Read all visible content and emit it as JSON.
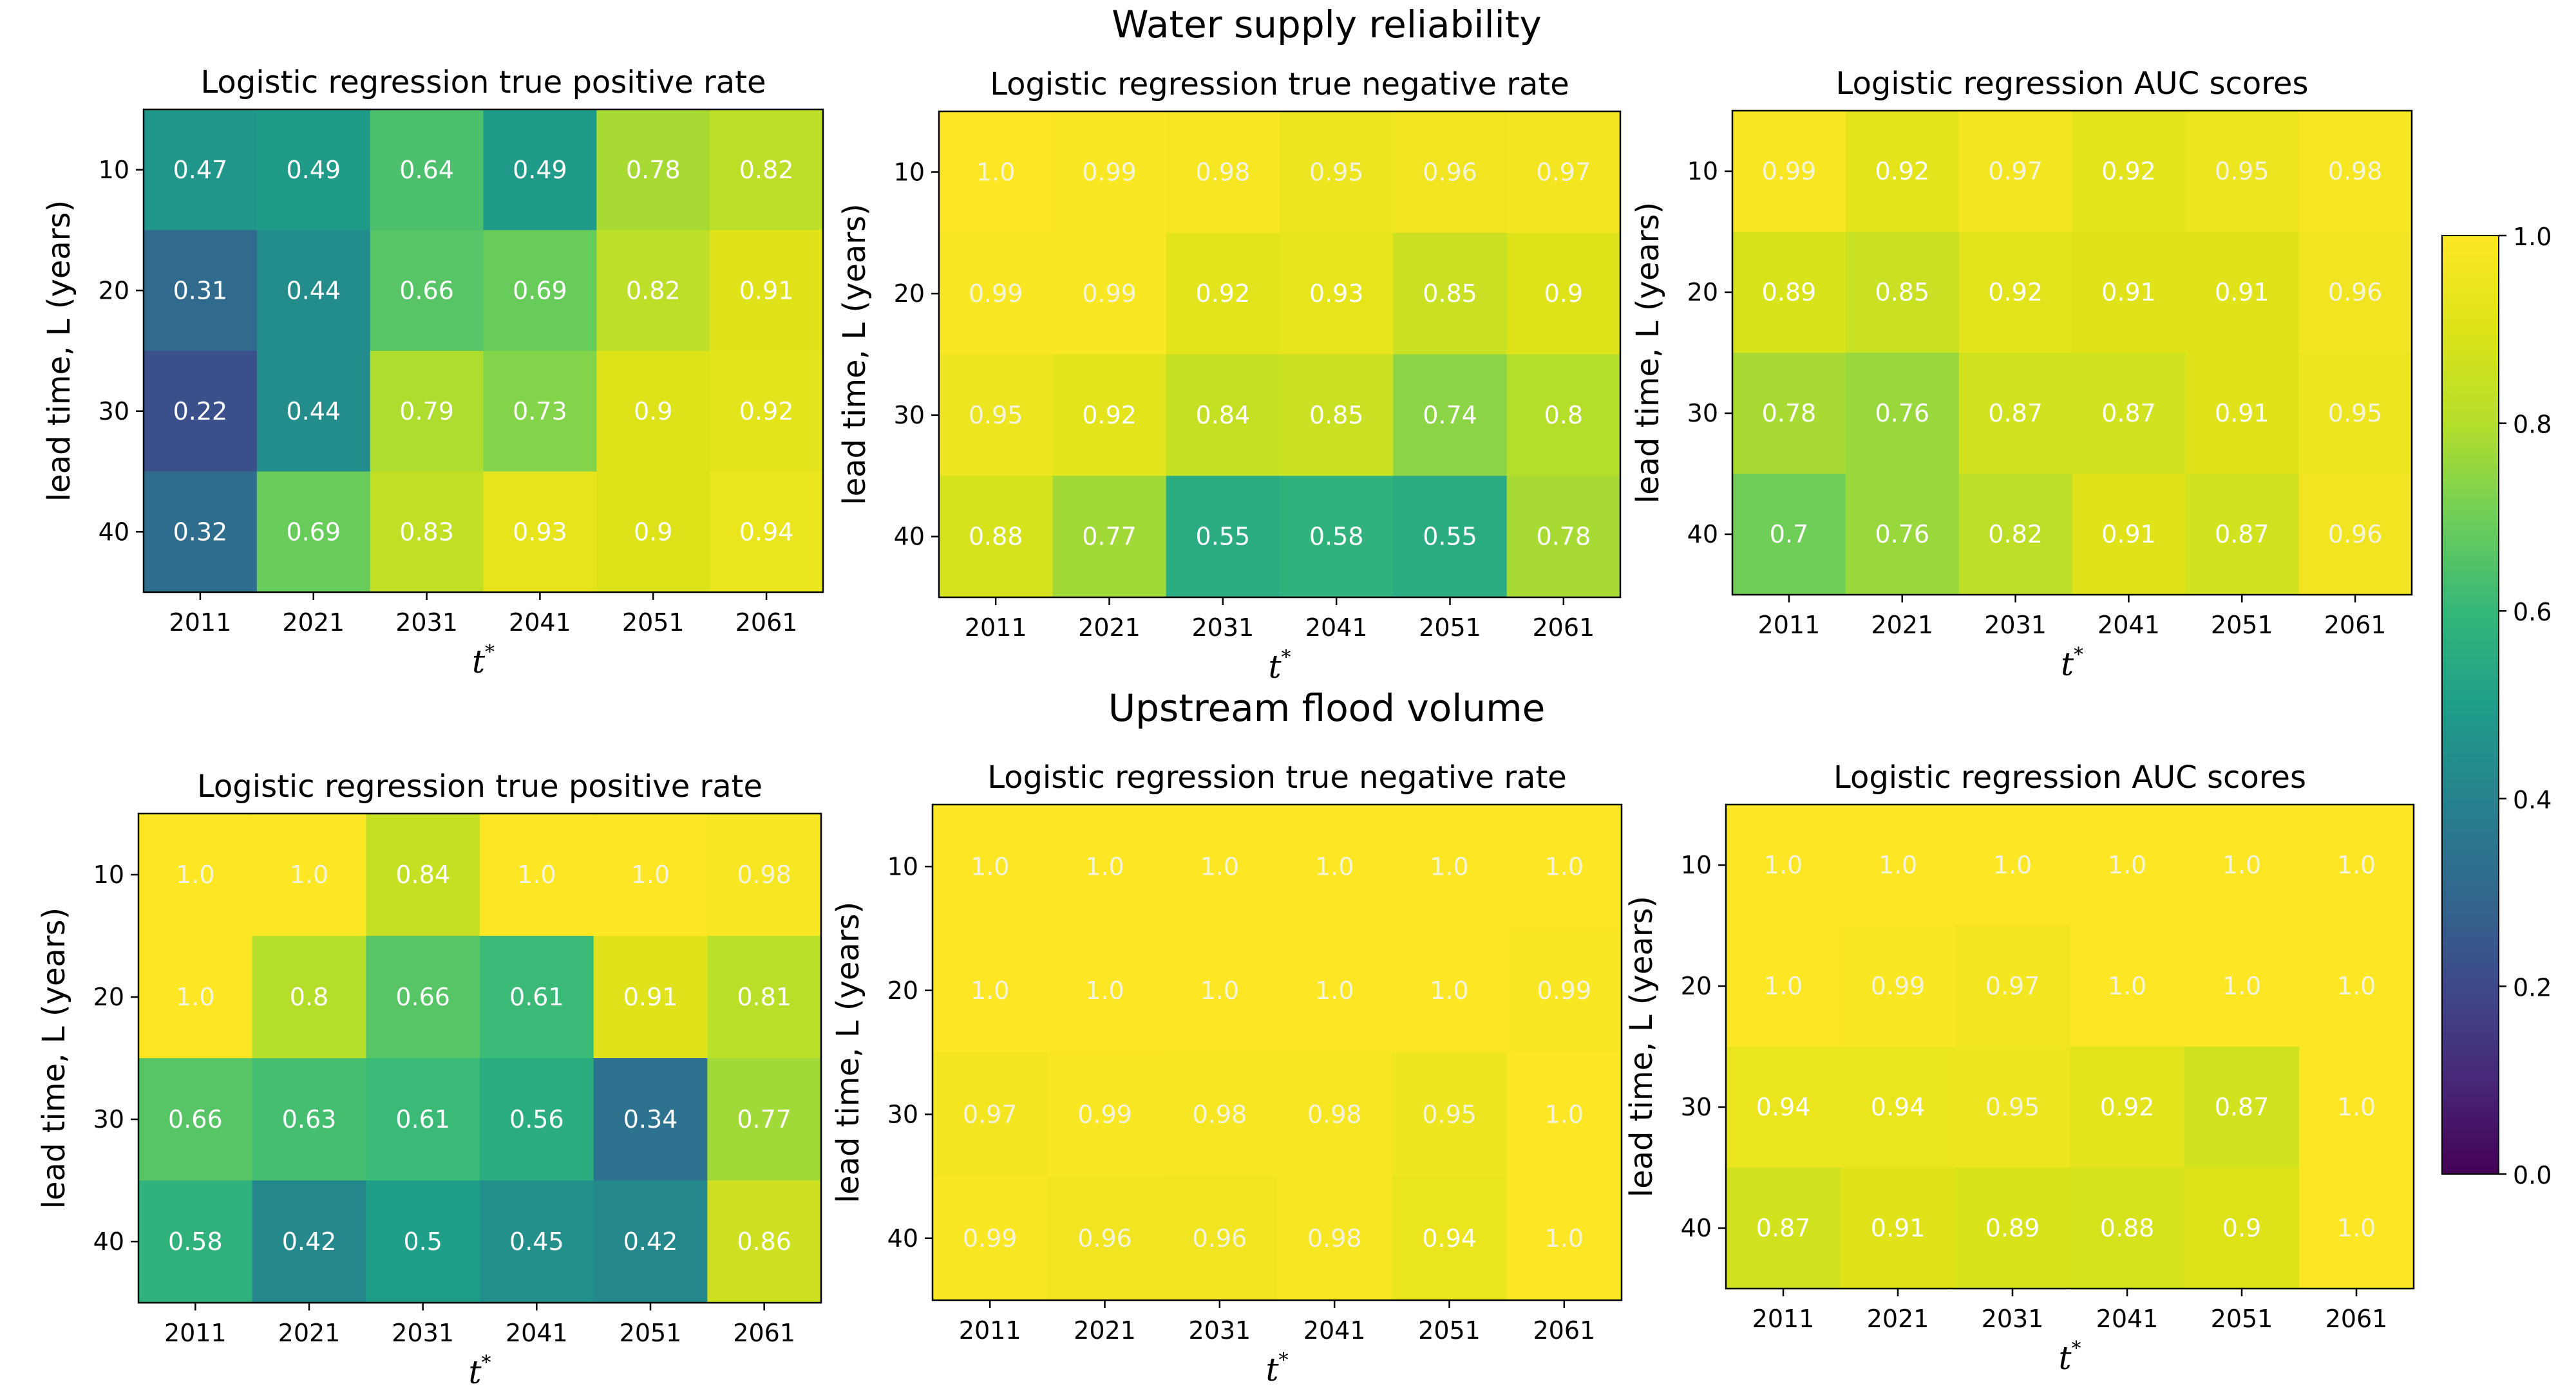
{
  "suptitles": {
    "top": "Water supply reliability",
    "bottom": "Upstream flood volume"
  },
  "chart_data": [
    {
      "type": "heatmap",
      "group": "Water supply reliability",
      "title": "Logistic regression true positive rate",
      "xlabel": "t",
      "xlabel_sup": "*",
      "ylabel": "lead time, L (years)",
      "x": [
        "2011",
        "2021",
        "2031",
        "2041",
        "2051",
        "2061"
      ],
      "y": [
        "10",
        "20",
        "30",
        "40"
      ],
      "values": [
        [
          0.47,
          0.49,
          0.64,
          0.49,
          0.78,
          0.82
        ],
        [
          0.31,
          0.44,
          0.66,
          0.69,
          0.82,
          0.91
        ],
        [
          0.22,
          0.44,
          0.79,
          0.73,
          0.9,
          0.92
        ],
        [
          0.32,
          0.69,
          0.83,
          0.93,
          0.9,
          0.94
        ]
      ],
      "labels": [
        [
          "0.47",
          "0.49",
          "0.64",
          "0.49",
          "0.78",
          "0.82"
        ],
        [
          "0.31",
          "0.44",
          "0.66",
          "0.69",
          "0.82",
          "0.91"
        ],
        [
          "0.22",
          "0.44",
          "0.79",
          "0.73",
          "0.9",
          "0.92"
        ],
        [
          "0.32",
          "0.69",
          "0.83",
          "0.93",
          "0.9",
          "0.94"
        ]
      ]
    },
    {
      "type": "heatmap",
      "group": "Water supply reliability",
      "title": "Logistic regression true negative rate",
      "xlabel": "t",
      "xlabel_sup": "*",
      "ylabel": "lead time, L (years)",
      "x": [
        "2011",
        "2021",
        "2031",
        "2041",
        "2051",
        "2061"
      ],
      "y": [
        "10",
        "20",
        "30",
        "40"
      ],
      "values": [
        [
          1.0,
          0.99,
          0.98,
          0.95,
          0.96,
          0.97
        ],
        [
          0.99,
          0.99,
          0.92,
          0.93,
          0.85,
          0.9
        ],
        [
          0.95,
          0.92,
          0.84,
          0.85,
          0.74,
          0.8
        ],
        [
          0.88,
          0.77,
          0.55,
          0.58,
          0.55,
          0.78
        ]
      ],
      "labels": [
        [
          "1.0",
          "0.99",
          "0.98",
          "0.95",
          "0.96",
          "0.97"
        ],
        [
          "0.99",
          "0.99",
          "0.92",
          "0.93",
          "0.85",
          "0.9"
        ],
        [
          "0.95",
          "0.92",
          "0.84",
          "0.85",
          "0.74",
          "0.8"
        ],
        [
          "0.88",
          "0.77",
          "0.55",
          "0.58",
          "0.55",
          "0.78"
        ]
      ]
    },
    {
      "type": "heatmap",
      "group": "Water supply reliability",
      "title": "Logistic regression AUC scores",
      "xlabel": "t",
      "xlabel_sup": "*",
      "ylabel": "lead time, L (years)",
      "x": [
        "2011",
        "2021",
        "2031",
        "2041",
        "2051",
        "2061"
      ],
      "y": [
        "10",
        "20",
        "30",
        "40"
      ],
      "values": [
        [
          0.99,
          0.92,
          0.97,
          0.92,
          0.95,
          0.98
        ],
        [
          0.89,
          0.85,
          0.92,
          0.91,
          0.91,
          0.96
        ],
        [
          0.78,
          0.76,
          0.87,
          0.87,
          0.91,
          0.95
        ],
        [
          0.7,
          0.76,
          0.82,
          0.91,
          0.87,
          0.96
        ]
      ],
      "labels": [
        [
          "0.99",
          "0.92",
          "0.97",
          "0.92",
          "0.95",
          "0.98"
        ],
        [
          "0.89",
          "0.85",
          "0.92",
          "0.91",
          "0.91",
          "0.96"
        ],
        [
          "0.78",
          "0.76",
          "0.87",
          "0.87",
          "0.91",
          "0.95"
        ],
        [
          "0.7",
          "0.76",
          "0.82",
          "0.91",
          "0.87",
          "0.96"
        ]
      ]
    },
    {
      "type": "heatmap",
      "group": "Upstream flood volume",
      "title": "Logistic regression true positive rate",
      "xlabel": "t",
      "xlabel_sup": "*",
      "ylabel": "lead time, L (years)",
      "x": [
        "2011",
        "2021",
        "2031",
        "2041",
        "2051",
        "2061"
      ],
      "y": [
        "10",
        "20",
        "30",
        "40"
      ],
      "values": [
        [
          1.0,
          1.0,
          0.84,
          1.0,
          1.0,
          0.98
        ],
        [
          1.0,
          0.8,
          0.66,
          0.61,
          0.91,
          0.81
        ],
        [
          0.66,
          0.63,
          0.61,
          0.56,
          0.34,
          0.77
        ],
        [
          0.58,
          0.42,
          0.5,
          0.45,
          0.42,
          0.86
        ]
      ],
      "labels": [
        [
          "1.0",
          "1.0",
          "0.84",
          "1.0",
          "1.0",
          "0.98"
        ],
        [
          "1.0",
          "0.8",
          "0.66",
          "0.61",
          "0.91",
          "0.81"
        ],
        [
          "0.66",
          "0.63",
          "0.61",
          "0.56",
          "0.34",
          "0.77"
        ],
        [
          "0.58",
          "0.42",
          "0.5",
          "0.45",
          "0.42",
          "0.86"
        ]
      ]
    },
    {
      "type": "heatmap",
      "group": "Upstream flood volume",
      "title": "Logistic regression true negative rate",
      "xlabel": "t",
      "xlabel_sup": "*",
      "ylabel": "lead time, L (years)",
      "x": [
        "2011",
        "2021",
        "2031",
        "2041",
        "2051",
        "2061"
      ],
      "y": [
        "10",
        "20",
        "30",
        "40"
      ],
      "values": [
        [
          1.0,
          1.0,
          1.0,
          1.0,
          1.0,
          1.0
        ],
        [
          1.0,
          1.0,
          1.0,
          1.0,
          1.0,
          0.99
        ],
        [
          0.97,
          0.99,
          0.98,
          0.98,
          0.95,
          1.0
        ],
        [
          0.99,
          0.96,
          0.96,
          0.98,
          0.94,
          1.0
        ]
      ],
      "labels": [
        [
          "1.0",
          "1.0",
          "1.0",
          "1.0",
          "1.0",
          "1.0"
        ],
        [
          "1.0",
          "1.0",
          "1.0",
          "1.0",
          "1.0",
          "0.99"
        ],
        [
          "0.97",
          "0.99",
          "0.98",
          "0.98",
          "0.95",
          "1.0"
        ],
        [
          "0.99",
          "0.96",
          "0.96",
          "0.98",
          "0.94",
          "1.0"
        ]
      ]
    },
    {
      "type": "heatmap",
      "group": "Upstream flood volume",
      "title": "Logistic regression AUC scores",
      "xlabel": "t",
      "xlabel_sup": "*",
      "ylabel": "lead time, L (years)",
      "x": [
        "2011",
        "2021",
        "2031",
        "2041",
        "2051",
        "2061"
      ],
      "y": [
        "10",
        "20",
        "30",
        "40"
      ],
      "values": [
        [
          1.0,
          1.0,
          1.0,
          1.0,
          1.0,
          1.0
        ],
        [
          1.0,
          0.99,
          0.97,
          1.0,
          1.0,
          1.0
        ],
        [
          0.94,
          0.94,
          0.95,
          0.92,
          0.87,
          1.0
        ],
        [
          0.87,
          0.91,
          0.89,
          0.88,
          0.9,
          1.0
        ]
      ],
      "labels": [
        [
          "1.0",
          "1.0",
          "1.0",
          "1.0",
          "1.0",
          "1.0"
        ],
        [
          "1.0",
          "0.99",
          "0.97",
          "1.0",
          "1.0",
          "1.0"
        ],
        [
          "0.94",
          "0.94",
          "0.95",
          "0.92",
          "0.87",
          "1.0"
        ],
        [
          "0.87",
          "0.91",
          "0.89",
          "0.88",
          "0.9",
          "1.0"
        ]
      ]
    }
  ],
  "colorbar": {
    "colormap": "viridis",
    "range": [
      0.0,
      1.0
    ],
    "ticks": [
      "0.0",
      "0.2",
      "0.4",
      "0.6",
      "0.8",
      "1.0"
    ],
    "tick_values": [
      0.0,
      0.2,
      0.4,
      0.6,
      0.8,
      1.0
    ]
  }
}
